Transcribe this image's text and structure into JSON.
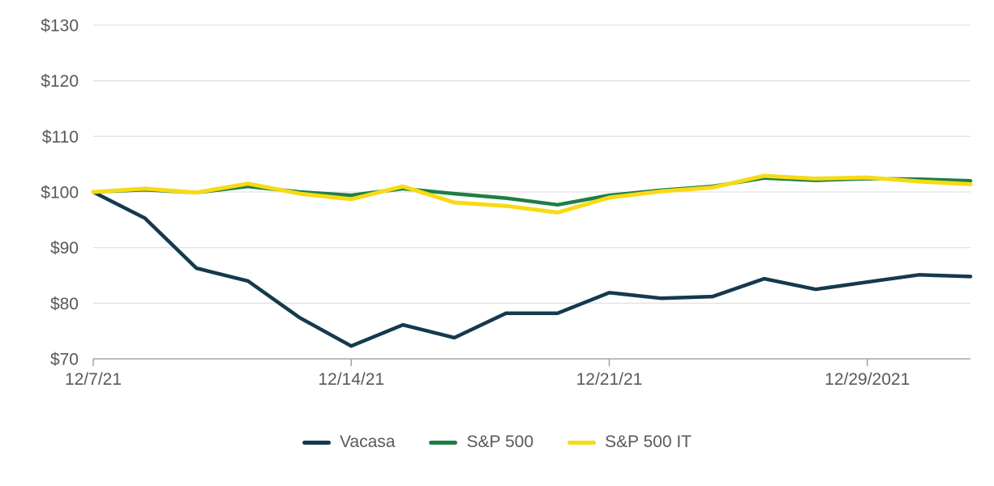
{
  "chart_data": {
    "type": "line",
    "title": "",
    "xlabel": "",
    "ylabel": "",
    "x": [
      "12/7/21",
      "12/8/21",
      "12/9/21",
      "12/10/21",
      "12/13/21",
      "12/14/21",
      "12/15/21",
      "12/16/21",
      "12/17/21",
      "12/20/21",
      "12/21/21",
      "12/22/21",
      "12/23/21",
      "12/27/21",
      "12/28/21",
      "12/29/21",
      "12/30/21",
      "12/31/21"
    ],
    "x_tick_indices": [
      0,
      5,
      10,
      15
    ],
    "x_tick_labels": [
      "12/7/21",
      "12/14/21",
      "12/21/21",
      "12/29/2021"
    ],
    "y_ticks": [
      70,
      80,
      90,
      100,
      110,
      120,
      130
    ],
    "y_tick_labels": [
      "$70",
      "$80",
      "$90",
      "$100",
      "$110",
      "$120",
      "$130"
    ],
    "ylim": [
      70,
      130
    ],
    "grid": true,
    "legend_position": "bottom",
    "series": [
      {
        "name": "Vacasa",
        "color": "#15394E",
        "values": [
          100,
          95.3,
          86.3,
          84,
          77.4,
          72.3,
          76.1,
          73.8,
          78.2,
          78.2,
          81.9,
          80.9,
          81.2,
          84.4,
          82.5,
          83.8,
          85.1,
          84.8
        ]
      },
      {
        "name": "S&P 500",
        "color": "#1E7E45",
        "values": [
          100,
          100.4,
          99.9,
          101,
          100,
          99.4,
          100.6,
          99.7,
          98.9,
          97.7,
          99.4,
          100.3,
          101,
          102.5,
          102.1,
          102.4,
          102.3,
          102
        ]
      },
      {
        "name": "S&P 500 IT",
        "color": "#F7DA16",
        "values": [
          100,
          100.6,
          99.9,
          101.5,
          99.7,
          98.7,
          101,
          98.1,
          97.5,
          96.3,
          99,
          100.1,
          100.8,
          102.9,
          102.4,
          102.6,
          101.9,
          101.4
        ]
      }
    ],
    "colors": {
      "gridline": "#E2E2E2",
      "axis_line": "#A6A6A6",
      "tick_text": "#595959",
      "background": "#FFFFFF"
    }
  }
}
